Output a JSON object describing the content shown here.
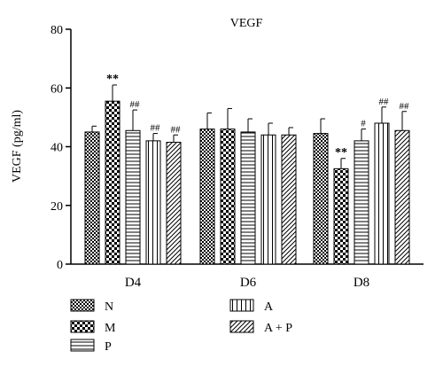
{
  "chart_data": {
    "type": "bar",
    "title": "VEGF",
    "xlabel": "",
    "ylabel": "VEGF (pg/ml)",
    "ylim": [
      0,
      80
    ],
    "yticks": [
      "0",
      "20",
      "40",
      "60",
      "80"
    ],
    "grid": false,
    "legend_position": "bottom",
    "categories": [
      "D4",
      "D6",
      "D8"
    ],
    "series": [
      {
        "name": "N",
        "pattern": "crosshatch",
        "values": [
          45,
          46,
          44.5
        ],
        "errors": [
          2,
          5.5,
          5
        ],
        "annotations": [
          "",
          "",
          ""
        ]
      },
      {
        "name": "M",
        "pattern": "checker",
        "values": [
          55.5,
          46,
          32.5
        ],
        "errors": [
          5.5,
          7,
          3.5
        ],
        "annotations": [
          "**",
          "",
          "**"
        ]
      },
      {
        "name": "P",
        "pattern": "horizontal",
        "values": [
          45.5,
          45,
          42
        ],
        "errors": [
          7,
          4.5,
          4
        ],
        "annotations": [
          "##",
          "",
          "#"
        ]
      },
      {
        "name": "A",
        "pattern": "vertical",
        "values": [
          42,
          44,
          48
        ],
        "errors": [
          2.5,
          4,
          5.5
        ],
        "annotations": [
          "##",
          "",
          "##"
        ]
      },
      {
        "name": "A + P",
        "pattern": "diagonal",
        "values": [
          41.5,
          44,
          45.5
        ],
        "errors": [
          2.5,
          2.5,
          6.5
        ],
        "annotations": [
          "##",
          "",
          "##"
        ]
      }
    ]
  }
}
